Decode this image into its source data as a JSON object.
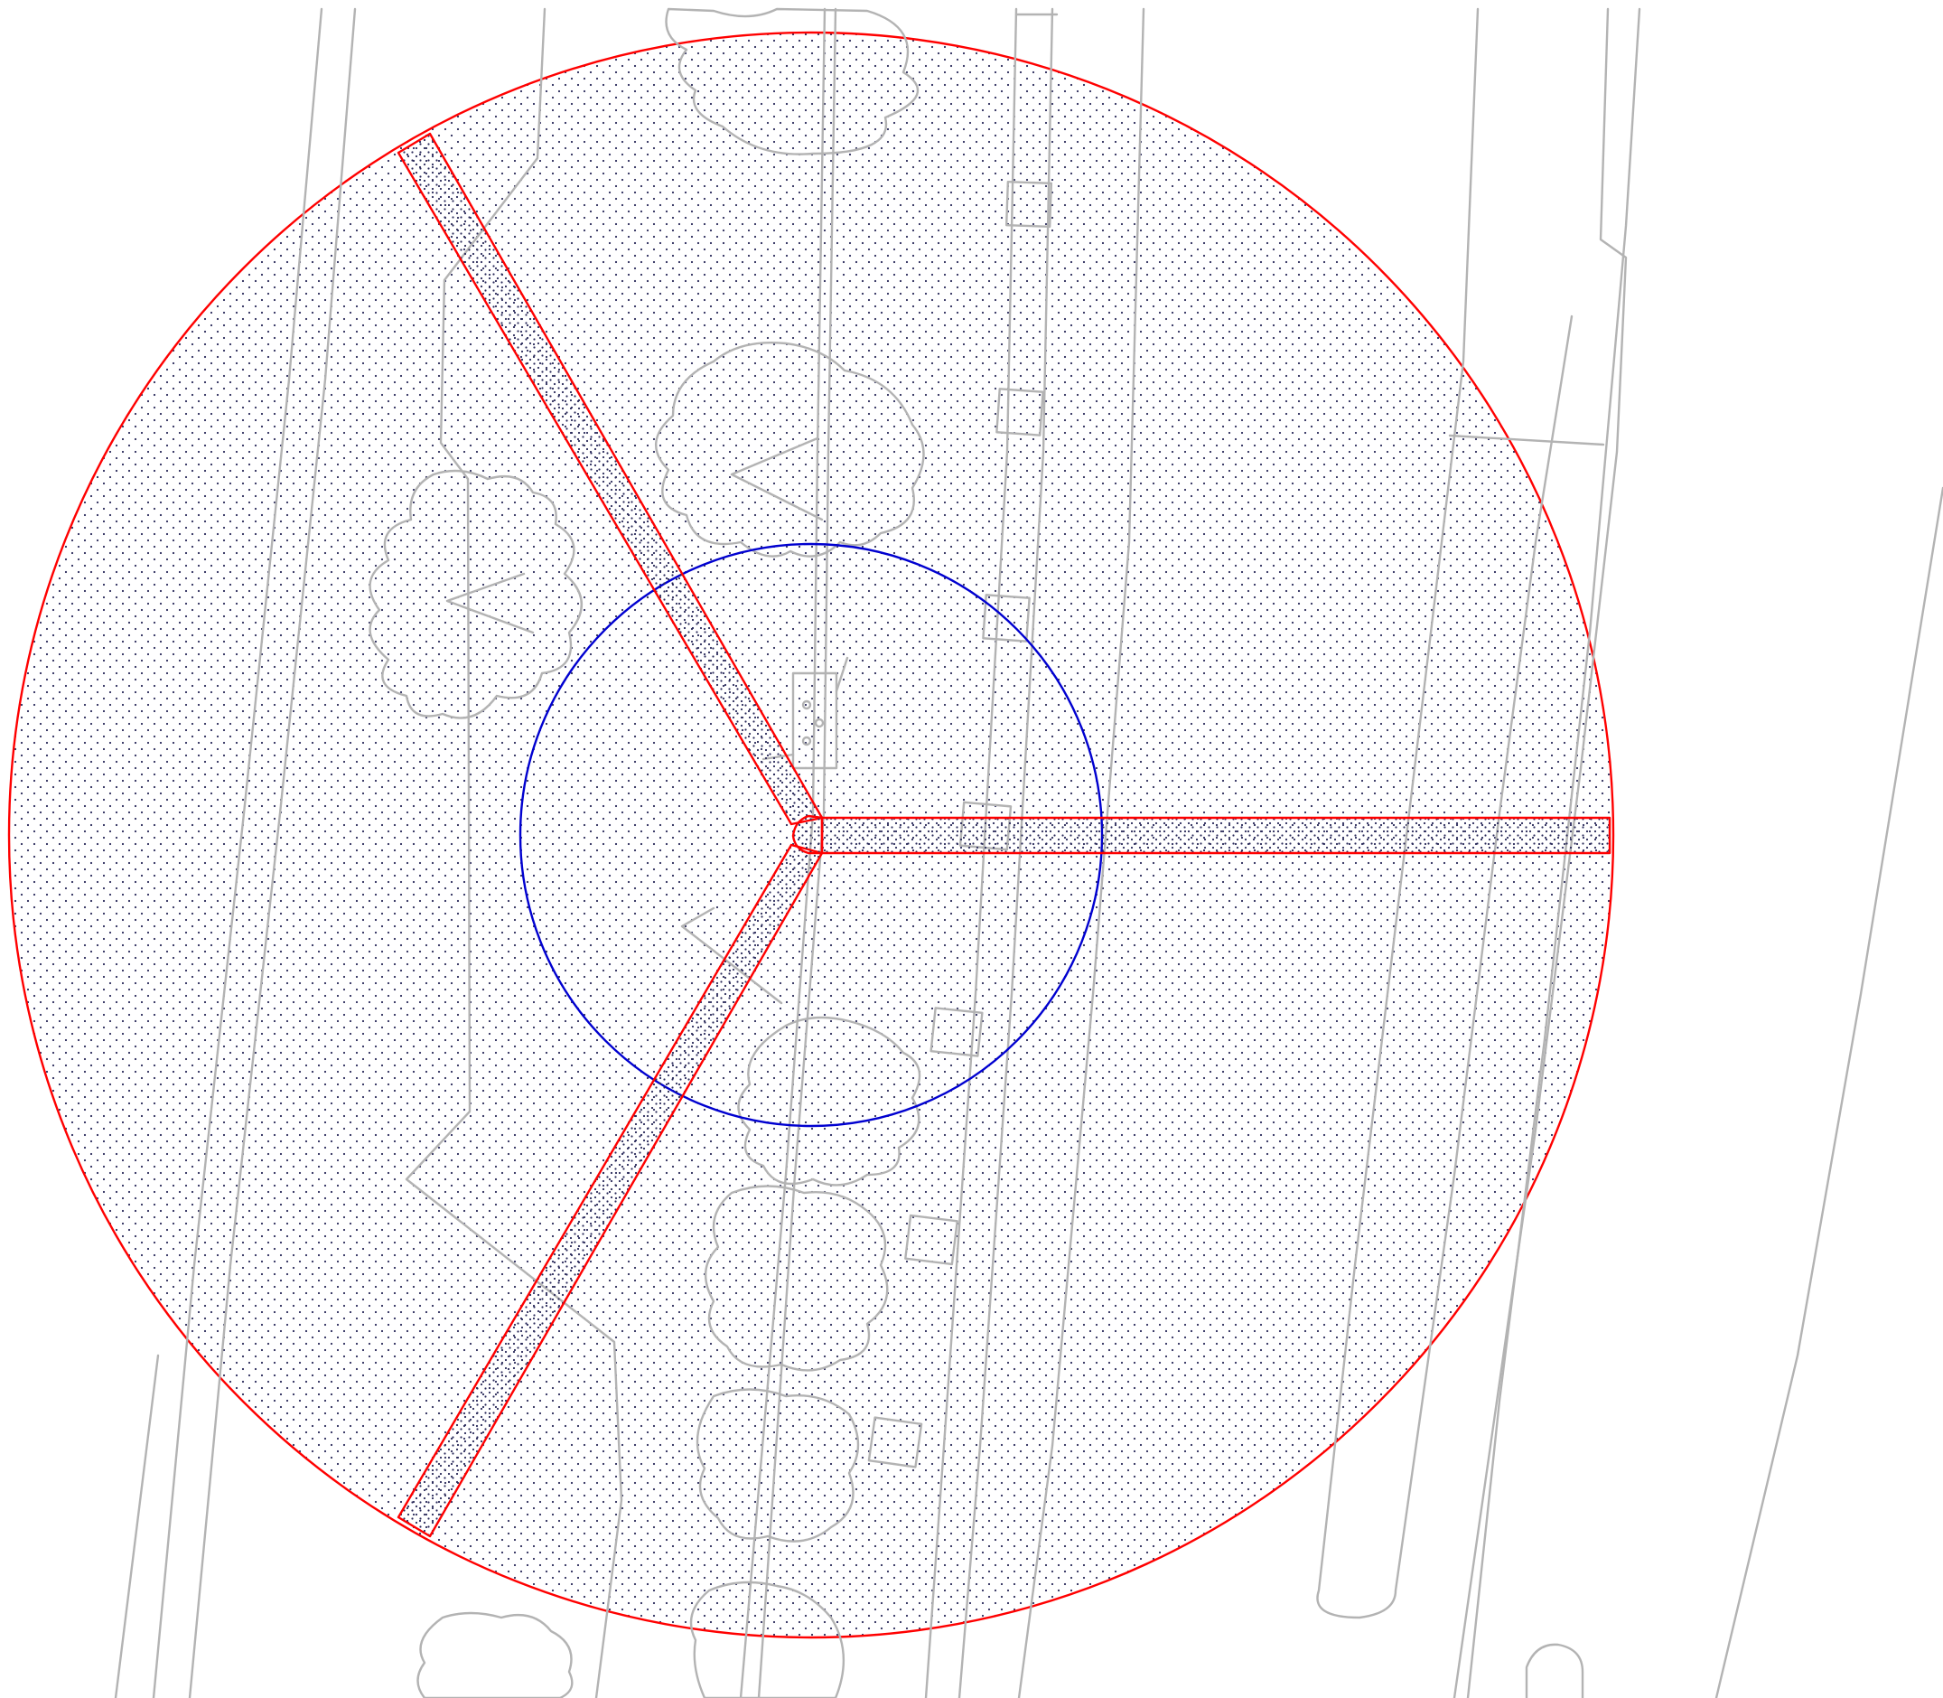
{
  "map": {
    "colors": {
      "outer_zone": "#ff0000",
      "corridor": "#ff0000",
      "inner_zone": "#0000d0",
      "base_linework": "#b3b3b3",
      "stipple": "#2a2a5a",
      "background": "#ffffff"
    },
    "layers": [
      {
        "id": "outer-zone",
        "kind": "circle",
        "stroke": "red",
        "fill": "stipple"
      },
      {
        "id": "inner-zone",
        "kind": "circle",
        "stroke": "blue",
        "fill": "none"
      },
      {
        "id": "corridors",
        "kind": "strips",
        "count": 3,
        "stroke": "red",
        "fill": "dense-stipple"
      },
      {
        "id": "base-map",
        "kind": "linework",
        "stroke": "grey",
        "features": [
          "roads",
          "tree-canopy",
          "utility-boxes",
          "central-structure"
        ]
      }
    ]
  }
}
